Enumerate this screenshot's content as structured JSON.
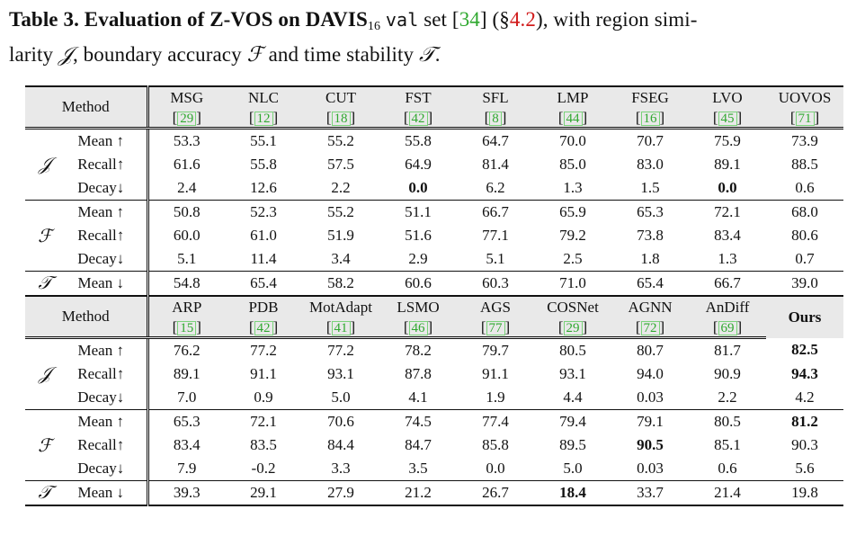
{
  "caption": {
    "label": "Table 3.",
    "bold_text": "Evaluation of Z-VOS on DAVIS",
    "subscript": "16",
    "mono_word": "val",
    "set_word": "set",
    "cite_open": "[",
    "cite_num": "34",
    "cite_close": "]",
    "section_open": "(§",
    "section_num": "4.2",
    "section_close": "), with region simi-",
    "line2_a": "larity",
    "sym_J": "𝒥",
    "line2_b": ", boundary accuracy",
    "sym_F": "ℱ",
    "line2_c": "and time stability",
    "sym_T": "𝒯",
    "line2_d": "."
  },
  "table": {
    "method_header": "Method",
    "block1": {
      "methods": [
        {
          "name": "MSG",
          "cite": "29"
        },
        {
          "name": "NLC",
          "cite": "12"
        },
        {
          "name": "CUT",
          "cite": "18"
        },
        {
          "name": "FST",
          "cite": "42"
        },
        {
          "name": "SFL",
          "cite": "8"
        },
        {
          "name": "LMP",
          "cite": "44"
        },
        {
          "name": "FSEG",
          "cite": "16"
        },
        {
          "name": "LVO",
          "cite": "45"
        },
        {
          "name": "UOVOS",
          "cite": "71"
        }
      ],
      "rows": [
        {
          "group": "𝒥",
          "metric": "Mean ↑",
          "values": [
            "53.3",
            "55.1",
            "55.2",
            "55.8",
            "64.7",
            "70.0",
            "70.7",
            "75.9",
            "73.9"
          ],
          "bold": []
        },
        {
          "group": "",
          "metric": "Recall↑",
          "values": [
            "61.6",
            "55.8",
            "57.5",
            "64.9",
            "81.4",
            "85.0",
            "83.0",
            "89.1",
            "88.5"
          ],
          "bold": []
        },
        {
          "group": "",
          "metric": "Decay↓",
          "values": [
            "2.4",
            "12.6",
            "2.2",
            "0.0",
            "6.2",
            "1.3",
            "1.5",
            "0.0",
            "0.6"
          ],
          "bold": [
            3,
            7
          ]
        },
        {
          "group": "ℱ",
          "metric": "Mean ↑",
          "values": [
            "50.8",
            "52.3",
            "55.2",
            "51.1",
            "66.7",
            "65.9",
            "65.3",
            "72.1",
            "68.0"
          ],
          "bold": []
        },
        {
          "group": "",
          "metric": "Recall↑",
          "values": [
            "60.0",
            "61.0",
            "51.9",
            "51.6",
            "77.1",
            "79.2",
            "73.8",
            "83.4",
            "80.6"
          ],
          "bold": []
        },
        {
          "group": "",
          "metric": "Decay↓",
          "values": [
            "5.1",
            "11.4",
            "3.4",
            "2.9",
            "5.1",
            "2.5",
            "1.8",
            "1.3",
            "0.7"
          ],
          "bold": []
        },
        {
          "group": "𝒯",
          "metric": "Mean ↓",
          "values": [
            "54.8",
            "65.4",
            "58.2",
            "60.6",
            "60.3",
            "71.0",
            "65.4",
            "66.7",
            "39.0"
          ],
          "bold": []
        }
      ]
    },
    "block2": {
      "methods": [
        {
          "name": "ARP",
          "cite": "15"
        },
        {
          "name": "PDB",
          "cite": "42"
        },
        {
          "name": "MotAdapt",
          "cite": "41"
        },
        {
          "name": "LSMO",
          "cite": "46"
        },
        {
          "name": "AGS",
          "cite": "77"
        },
        {
          "name": "COSNet",
          "cite": "29"
        },
        {
          "name": "AGNN",
          "cite": "72"
        },
        {
          "name": "AnDiff",
          "cite": "69"
        },
        {
          "name": "Ours",
          "cite": ""
        }
      ],
      "rows": [
        {
          "group": "𝒥",
          "metric": "Mean ↑",
          "values": [
            "76.2",
            "77.2",
            "77.2",
            "78.2",
            "79.7",
            "80.5",
            "80.7",
            "81.7",
            "82.5"
          ],
          "bold": [
            8
          ]
        },
        {
          "group": "",
          "metric": "Recall↑",
          "values": [
            "89.1",
            "91.1",
            "93.1",
            "87.8",
            "91.1",
            "93.1",
            "94.0",
            "90.9",
            "94.3"
          ],
          "bold": [
            8
          ]
        },
        {
          "group": "",
          "metric": "Decay↓",
          "values": [
            "7.0",
            "0.9",
            "5.0",
            "4.1",
            "1.9",
            "4.4",
            "0.03",
            "2.2",
            "4.2"
          ],
          "bold": []
        },
        {
          "group": "ℱ",
          "metric": "Mean ↑",
          "values": [
            "65.3",
            "72.1",
            "70.6",
            "74.5",
            "77.4",
            "79.4",
            "79.1",
            "80.5",
            "81.2"
          ],
          "bold": [
            8
          ]
        },
        {
          "group": "",
          "metric": "Recall↑",
          "values": [
            "83.4",
            "83.5",
            "84.4",
            "84.7",
            "85.8",
            "89.5",
            "90.5",
            "85.1",
            "90.3"
          ],
          "bold": [
            6
          ]
        },
        {
          "group": "",
          "metric": "Decay↓",
          "values": [
            "7.9",
            "-0.2",
            "3.3",
            "3.5",
            "0.0",
            "5.0",
            "0.03",
            "0.6",
            "5.6"
          ],
          "bold": []
        },
        {
          "group": "𝒯",
          "metric": "Mean ↓",
          "values": [
            "39.3",
            "29.1",
            "27.9",
            "21.2",
            "26.7",
            "18.4",
            "33.7",
            "21.4",
            "19.8"
          ],
          "bold": [
            5
          ]
        }
      ]
    }
  }
}
